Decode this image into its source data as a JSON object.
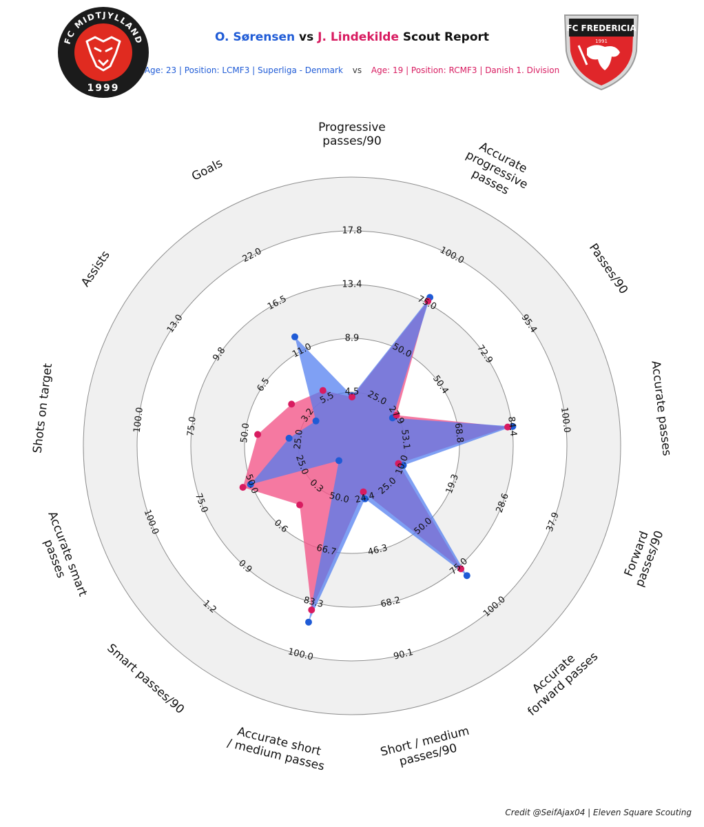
{
  "header": {
    "player1": "O. Sørensen",
    "vs": "vs",
    "player2": "J. Lindekilde",
    "suffix": "Scout Report",
    "p1_info": "Age: 23 | Position: LCMF3 | Superliga - Denmark",
    "sub_vs": "vs",
    "p2_info": "Age: 19 | Position: RCMF3 | Danish 1. Division"
  },
  "logos": {
    "left_text_top": "FC MIDTJYLLAND",
    "left_text_bottom": "1999",
    "right_text": "FC FREDERICIA",
    "right_year": "1991"
  },
  "colors": {
    "p1": "#1f5bd6",
    "p2": "#d81b60",
    "p1_fill": "#4d7cf0",
    "p2_fill": "#f2578a",
    "ring_fill": "#f0f0f0"
  },
  "credit": "Credit @SeifAjax04 | Eleven Square Scouting",
  "chart_data": {
    "type": "radar",
    "title": "O. Sørensen vs J. Lindekilde Scout Report",
    "parameters": [
      {
        "label": [
          "Progressive",
          "passes/90"
        ],
        "ticks": [
          "4.5",
          "8.9",
          "13.4",
          "17.8"
        ],
        "p1": 4.2,
        "p2": 4.1
      },
      {
        "label": [
          "Accurate",
          "progressive",
          "passes"
        ],
        "ticks": [
          "25.0",
          "50.0",
          "75.0",
          "100.0"
        ],
        "p1": 78,
        "p2": 76
      },
      {
        "label": [
          "Passes/90"
        ],
        "ticks": [
          "27.9",
          "50.4",
          "72.9",
          "95.4"
        ],
        "p1": 26,
        "p2": 28
      },
      {
        "label": [
          "Accurate passes"
        ],
        "ticks": [
          "53.1",
          "68.8",
          "84.4",
          "100.0"
        ],
        "p1": 84.6,
        "p2": 83.1
      },
      {
        "label": [
          "Forward",
          "passes/90"
        ],
        "ticks": [
          "10.0",
          "19.3",
          "28.6",
          "37.9"
        ],
        "p1": 10.2,
        "p2": 9.3
      },
      {
        "label": [
          "Accurate",
          "forward passes"
        ],
        "ticks": [
          "25.0",
          "50.0",
          "75.0",
          "100.0"
        ],
        "p1": 80.6,
        "p2": 76.4
      },
      {
        "label": [
          "Short / medium",
          "passes/90"
        ],
        "ticks": [
          "24.4",
          "46.3",
          "68.2",
          "90.1"
        ],
        "p1": 24.7,
        "p2": 21.8
      },
      {
        "label": [
          "Accurate short",
          "/ medium passes"
        ],
        "ticks": [
          "50.0",
          "66.7",
          "83.3",
          "100.0"
        ],
        "p1": 89.6,
        "p2": 85.7
      },
      {
        "label": [
          "Smart passes/90"
        ],
        "ticks": [
          "0.3",
          "0.6",
          "0.9",
          "1.2"
        ],
        "p1": 0.11,
        "p2": 0.44
      },
      {
        "label": [
          "Accurate smart",
          "passes"
        ],
        "ticks": [
          "25.0",
          "50.0",
          "75.0",
          "100.0"
        ],
        "p1": 50.5,
        "p2": 54.3
      },
      {
        "label": [
          "Shots on target"
        ],
        "ticks": [
          "25.0",
          "50.0",
          "75.0",
          "100.0"
        ],
        "p1": 29.5,
        "p2": 44.2
      },
      {
        "label": [
          "Assists"
        ],
        "ticks": [
          "3.2",
          "6.5",
          "9.8",
          "13.0"
        ],
        "p1": 2.6,
        "p2": 4.4
      },
      {
        "label": [
          "Goals"
        ],
        "ticks": [
          "5.5",
          "11.0",
          "16.5",
          "22.0"
        ],
        "p1": 12.6,
        "p2": 6.4
      }
    ],
    "series": [
      {
        "name": "O. Sørensen",
        "key": "p1"
      },
      {
        "name": "J. Lindekilde",
        "key": "p2"
      }
    ]
  }
}
